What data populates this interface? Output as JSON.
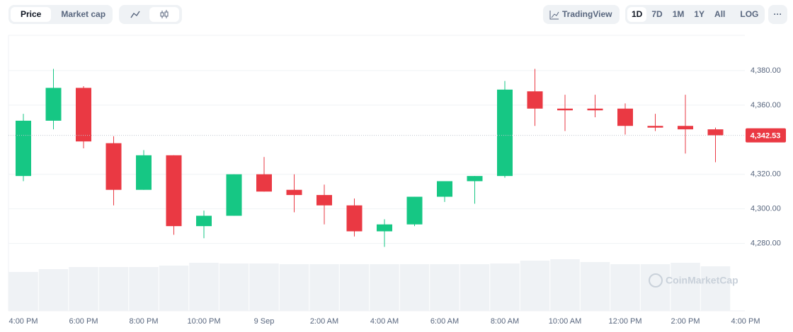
{
  "ui": {
    "tabs": [
      "Price",
      "Market cap"
    ],
    "tradingview": "TradingView",
    "ranges": [
      "1D",
      "7D",
      "1M",
      "1Y",
      "All"
    ],
    "log": "LOG",
    "more": "···",
    "watermark": "CoinMarketCap"
  },
  "chart_data": {
    "type": "candlestick",
    "categories": [
      "4:00 PM",
      null,
      "6:00 PM",
      null,
      "8:00 PM",
      null,
      "10:00 PM",
      null,
      "9 Sep",
      null,
      "2:00 AM",
      null,
      "4:00 AM",
      null,
      "6:00 AM",
      null,
      "8:00 AM",
      null,
      "10:00 AM",
      null,
      "12:00 PM",
      null,
      "2:00 PM",
      null,
      "4:00 PM"
    ],
    "open": [
      4319,
      4351,
      4370,
      4338,
      4311,
      4331,
      4290,
      4296,
      4320,
      4311,
      4308,
      4302,
      4287,
      4291,
      4307,
      4316,
      4319,
      4368,
      4358,
      4358,
      4358,
      4348,
      4348,
      4346,
      null
    ],
    "high": [
      4355,
      4381,
      4371,
      4342,
      4334,
      4331,
      4299,
      4320,
      4330,
      4320,
      4314,
      4306,
      4294,
      4307,
      4316,
      4319,
      4374,
      4381,
      4366,
      4366,
      4361,
      4355,
      4366,
      4347,
      null
    ],
    "low": [
      4316,
      4346,
      4335,
      4302,
      4311,
      4285,
      4283,
      4296,
      4310,
      4298,
      4291,
      4284,
      4278,
      4290,
      4304,
      4303,
      4318,
      4348,
      4345,
      4353,
      4343,
      4345,
      4332,
      4327,
      null
    ],
    "close": [
      4351,
      4370,
      4339,
      4311,
      4331,
      4290,
      4296,
      4320,
      4310,
      4308,
      4302,
      4287,
      4291,
      4307,
      4316,
      4319,
      4369,
      4358,
      4357,
      4357,
      4348,
      4347,
      4346,
      4342.53,
      null
    ],
    "volume": [
      55,
      59,
      62,
      62,
      62,
      64,
      68,
      67,
      67,
      66,
      66,
      66,
      66,
      66,
      66,
      66,
      67,
      71,
      73,
      69,
      66,
      66,
      68,
      63,
      null
    ],
    "up_color": "#16c784",
    "down_color": "#ea3943",
    "volume_color": "#eff2f5",
    "ylim": [
      4241,
      4400
    ],
    "yticks": [
      {
        "value": 4280,
        "label": "4,280.00"
      },
      {
        "value": 4300,
        "label": "4,300.00"
      },
      {
        "value": 4320,
        "label": "4,320.00"
      },
      {
        "value": 4360,
        "label": "4,360.00"
      },
      {
        "value": 4380,
        "label": "4,380.00"
      }
    ],
    "grid": true,
    "last_price": 4342.53,
    "last_price_label": "4,342.53"
  }
}
